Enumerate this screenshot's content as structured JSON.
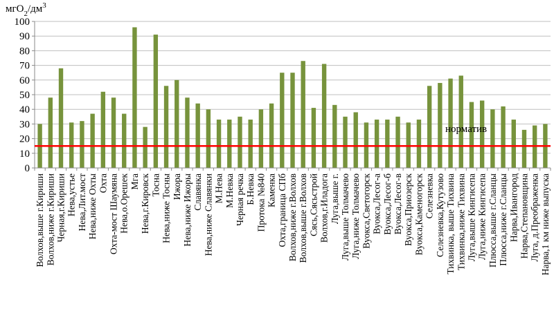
{
  "chart_data": {
    "type": "bar",
    "ylabel": "мгO",
    "ylabel_sub": "2",
    "ylabel_tail": "/дм",
    "ylabel_sup": "3",
    "ylim": [
      0,
      100
    ],
    "yticks": [
      0,
      10,
      20,
      30,
      40,
      50,
      60,
      70,
      80,
      90,
      100
    ],
    "grid": true,
    "bar_color": "#77933c",
    "norm_color": "#ff0000",
    "norm_value": 15,
    "norm_label": "норматив",
    "categories": [
      "Волхов,выше г.Кириши",
      "Волхов,ниже г.Кириши",
      "Черная,г.Кириши",
      "Нева,устье",
      "Нева,Лит.мост",
      "Нева,ниже Охты",
      "Охта",
      "Охта-мост Шаумяна",
      "Нева,о.Орешек",
      "Мга",
      "Нева,г.Кировск",
      "Тосна",
      "Нева,ниже Тосны",
      "Ижора",
      "Нева,ниже Ижоры",
      "Славянка",
      "Нева,ниже Славянки",
      "М.Нева",
      "М.Невка",
      "Черная речка",
      "Б.Невка",
      "Протока №840",
      "Каменка",
      "Охта,граница СПб",
      "Волхов,ниже г.Волхов",
      "Волхов,выше г.Волхов",
      "Сясь,Сясьстрой",
      "Волхов,г.Иладога",
      "Луга,выше г.",
      "Луга,выше Толмачево",
      "Луга,ниже Толмачево",
      "Вуокса,Светогорск",
      "Вуокса,Лесог-а",
      "Вуокса,Лесог-б",
      "Вуокса,Лесог-в",
      "Вуокса,Приозерск",
      "Вуокса,Каменогорск",
      "Селезневка",
      "Селезневка,Кутузово",
      "Тихвинка, выше Тихвина",
      "Тихвинка,ниже Тихвина",
      "Луга,выше Кингисепа",
      "Луга,ниже Кингисепа",
      "Плюсса,выше г.Сланцы",
      "Плюсса,ниже г.Сланцы",
      "Нарва,Ивангород",
      "Нарва,Степановщина",
      "Луга, д.Преображенка",
      "Нарва,1 км ниже выпуска"
    ],
    "values": [
      30,
      48,
      68,
      31,
      32,
      37,
      52,
      48,
      37,
      96,
      28,
      91,
      56,
      60,
      48,
      44,
      40,
      33,
      33,
      35,
      33,
      40,
      44,
      65,
      65,
      73,
      41,
      71,
      43,
      35,
      38,
      31,
      33,
      33,
      35,
      31,
      33,
      56,
      58,
      61,
      63,
      45,
      46,
      40,
      42,
      33,
      26,
      29,
      30
    ]
  }
}
